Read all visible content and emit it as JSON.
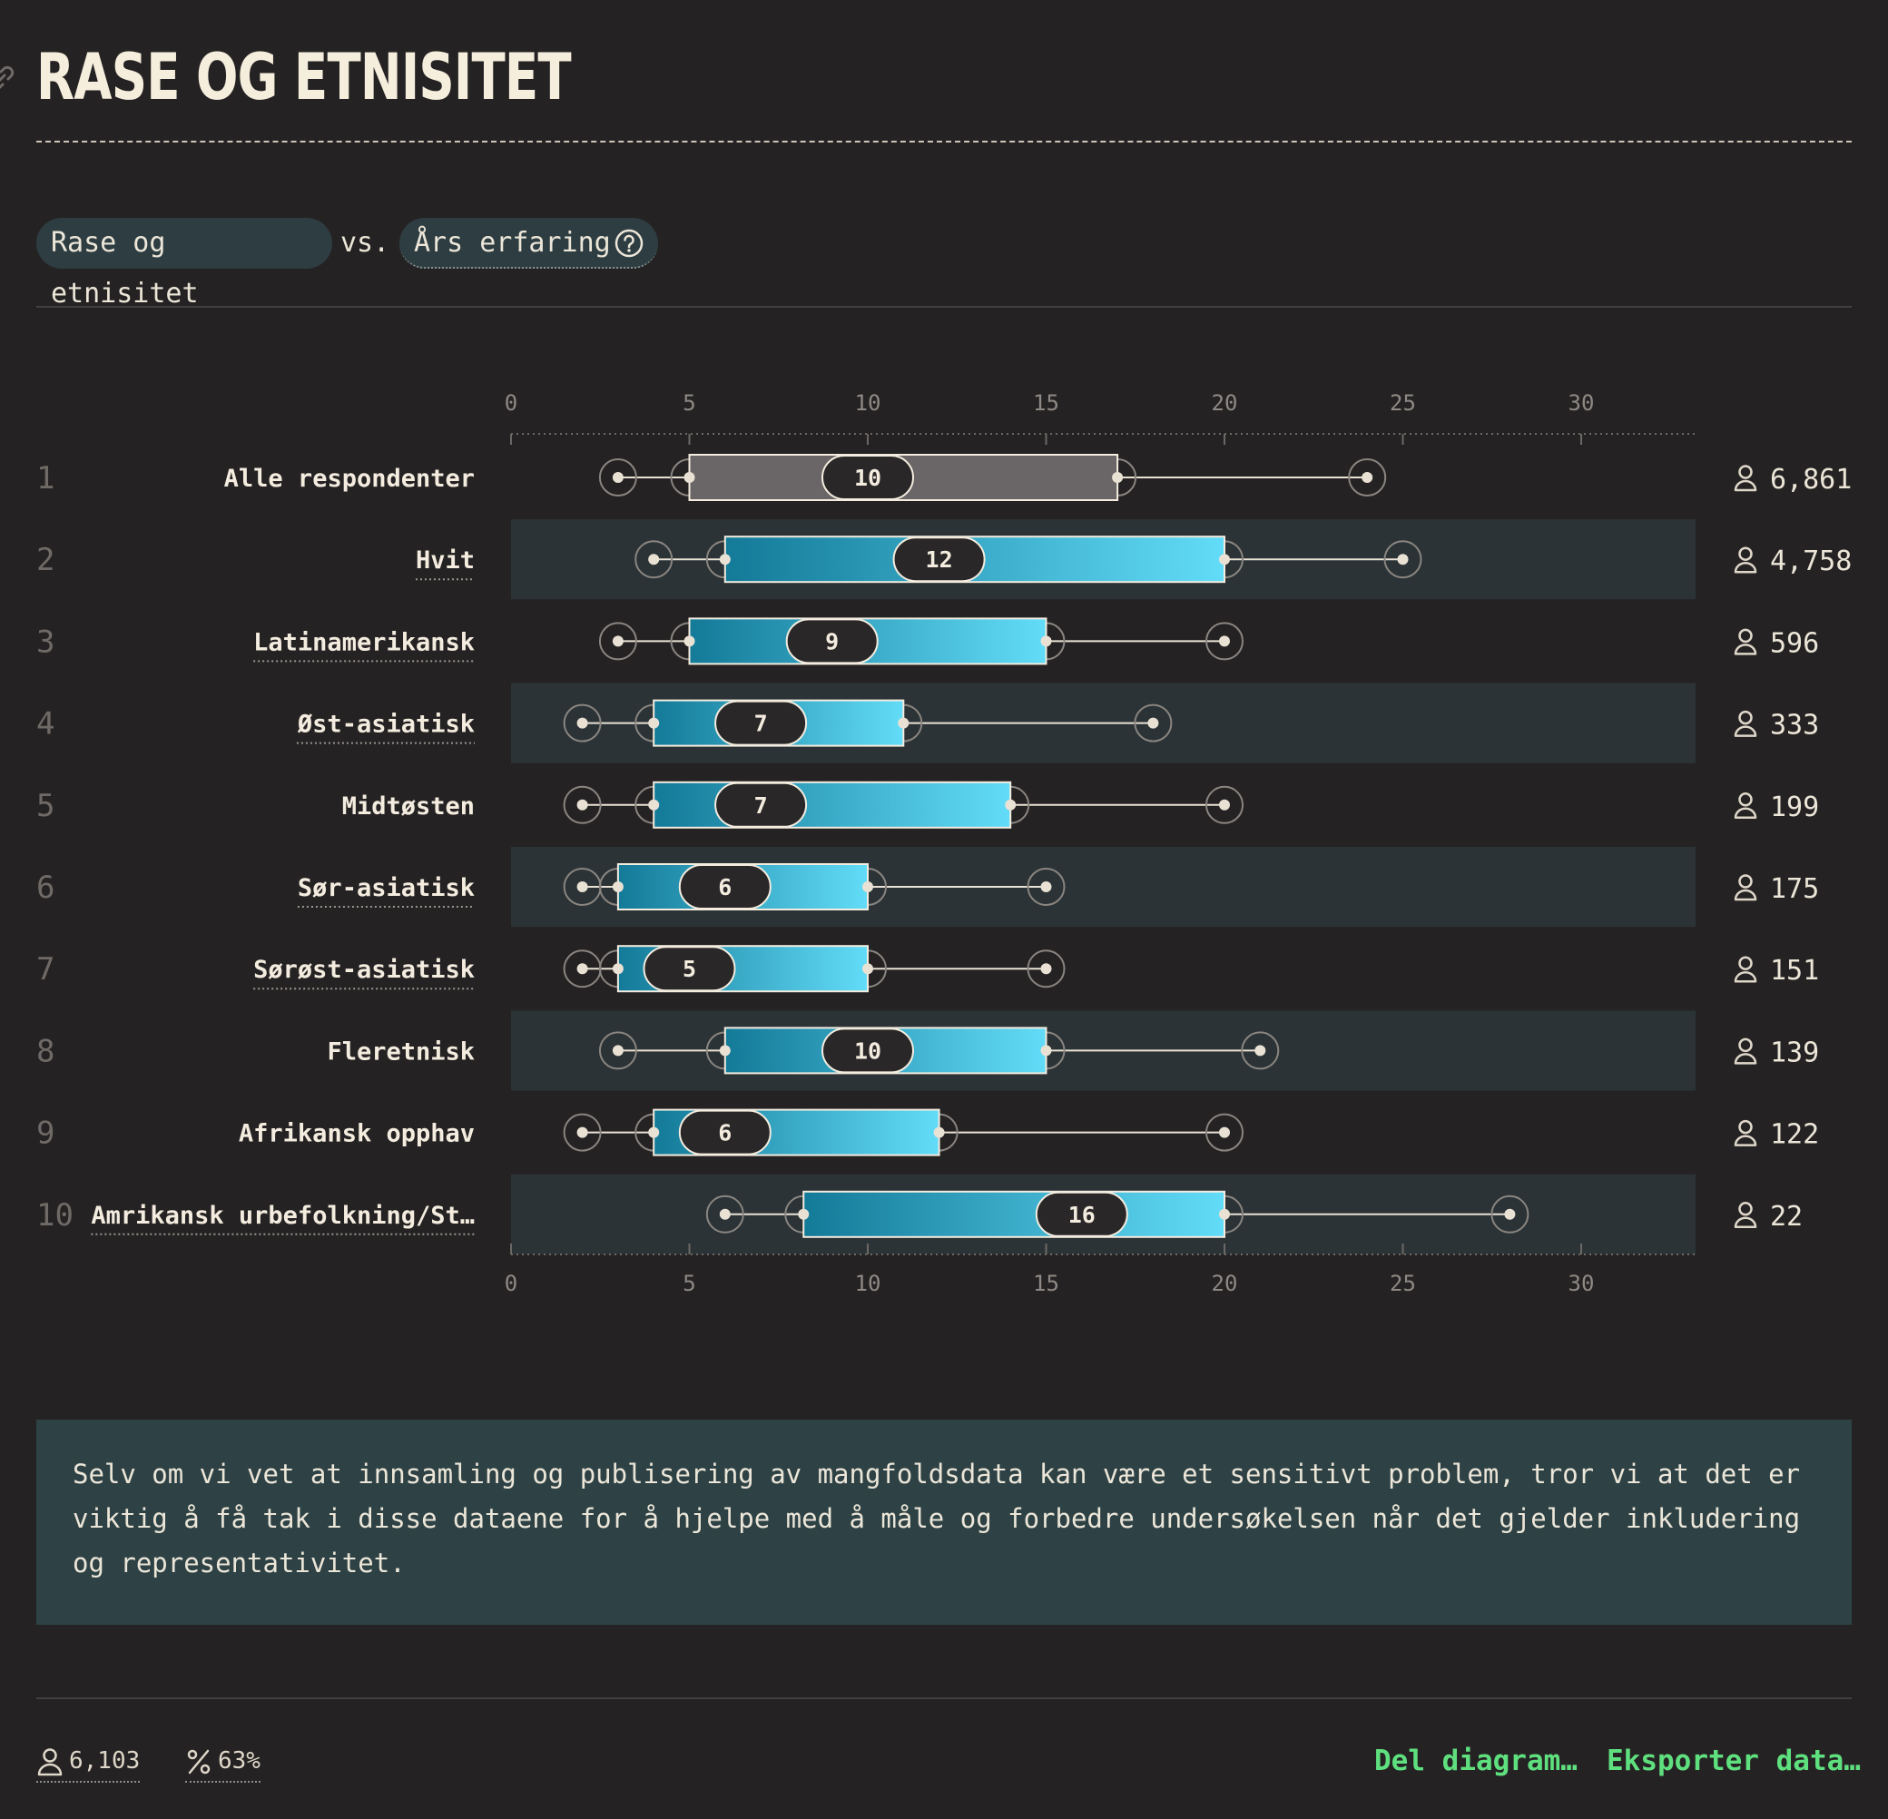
{
  "header": {
    "title": "RASE OG ETNISITET"
  },
  "filters": {
    "primary": "Rase og etnisitet",
    "vs": "vs.",
    "secondary": "Års erfaring"
  },
  "icons": {
    "link": "link-icon",
    "help": "question-circle-icon",
    "respondents": "person-icon",
    "percent": "percent-icon"
  },
  "colors": {
    "background": "#252223",
    "row_stripe": "#2b3336",
    "box_gradient_start": "#137a98",
    "box_gradient_end": "#62dcf8",
    "overall_box": "#6a6668",
    "accent_green": "#5fe07f",
    "note_background": "#2e4246"
  },
  "chart_data": {
    "type": "boxplot",
    "x_ticks": [
      0,
      5,
      10,
      15,
      20,
      25,
      30
    ],
    "xlim": [
      0,
      34
    ],
    "axis_position": "top-and-bottom",
    "rows": [
      {
        "rank": "1",
        "label": "Alle respondenter",
        "min": 3,
        "q1": 5,
        "median": 10,
        "q3": 17,
        "max": 24,
        "count": "6,861",
        "linked": false,
        "overall": true
      },
      {
        "rank": "2",
        "label": "Hvit",
        "min": 4,
        "q1": 6,
        "median": 12,
        "q3": 20,
        "max": 25,
        "count": "4,758",
        "linked": true,
        "overall": false
      },
      {
        "rank": "3",
        "label": "Latinamerikansk",
        "min": 3,
        "q1": 5,
        "median": 9,
        "q3": 15,
        "max": 20,
        "count": "596",
        "linked": true,
        "overall": false
      },
      {
        "rank": "4",
        "label": "Øst-asiatisk",
        "min": 2,
        "q1": 4,
        "median": 7,
        "q3": 11,
        "max": 18,
        "count": "333",
        "linked": true,
        "overall": false
      },
      {
        "rank": "5",
        "label": "Midtøsten",
        "min": 2,
        "q1": 4,
        "median": 7,
        "q3": 14,
        "max": 20,
        "count": "199",
        "linked": false,
        "overall": false
      },
      {
        "rank": "6",
        "label": "Sør-asiatisk",
        "min": 2,
        "q1": 3,
        "median": 6,
        "q3": 10,
        "max": 15,
        "count": "175",
        "linked": true,
        "overall": false
      },
      {
        "rank": "7",
        "label": "Sørøst-asiatisk",
        "min": 2,
        "q1": 3,
        "median": 5,
        "q3": 10,
        "max": 15,
        "count": "151",
        "linked": true,
        "overall": false
      },
      {
        "rank": "8",
        "label": "Fleretnisk",
        "min": 3,
        "q1": 6,
        "median": 10,
        "q3": 15,
        "max": 21,
        "count": "139",
        "linked": false,
        "overall": false
      },
      {
        "rank": "9",
        "label": "Afrikansk opphav",
        "min": 2,
        "q1": 4,
        "median": 6,
        "q3": 12,
        "max": 20,
        "count": "122",
        "linked": false,
        "overall": false
      },
      {
        "rank": "10",
        "label": "Amrikansk urbefolkning/St…",
        "min": 6,
        "q1": 8.2,
        "median": 16,
        "q3": 20,
        "max": 28,
        "count": "22",
        "linked": true,
        "overall": false
      }
    ]
  },
  "note": {
    "text": "Selv om vi vet at innsamling og publisering av mangfoldsdata kan være et sensitivt problem, tror vi at det er viktig å få tak i disse dataene for å hjelpe med å måle og forbedre undersøkelsen når det gjelder inkludering og representativitet."
  },
  "footer": {
    "respondents": "6,103",
    "percent": "63%",
    "share_label": "Del diagram…",
    "export_label": "Eksporter data…"
  }
}
